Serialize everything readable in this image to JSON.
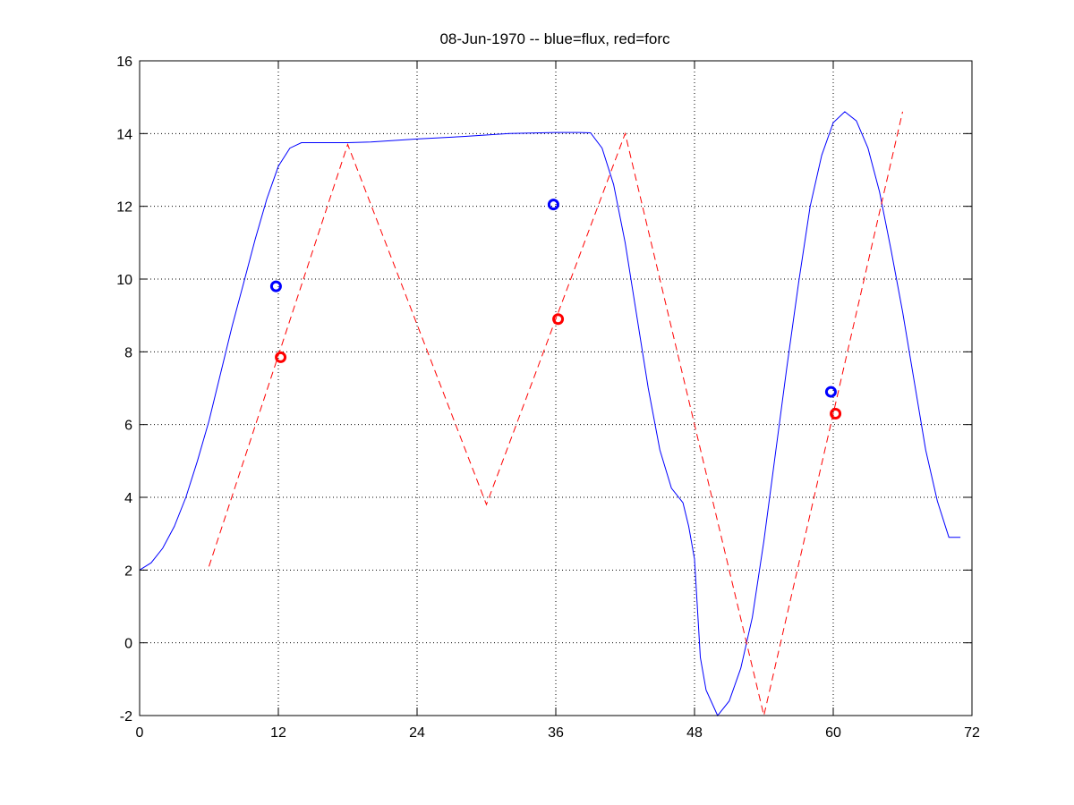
{
  "chart_data": {
    "type": "line",
    "title": "08-Jun-1970 -- blue=flux, red=forc",
    "xlabel": "",
    "ylabel": "",
    "xlim": [
      0,
      72
    ],
    "ylim": [
      -2,
      16
    ],
    "xticks": [
      0,
      12,
      24,
      36,
      48,
      60,
      72
    ],
    "yticks": [
      -2,
      0,
      2,
      4,
      6,
      8,
      10,
      12,
      14,
      16
    ],
    "grid": true,
    "colors": {
      "flux": "#0000ff",
      "forc": "#ff0000"
    },
    "series": [
      {
        "key": "flux",
        "style": "solid",
        "x": [
          0,
          1,
          2,
          3,
          4,
          5,
          6,
          7,
          8,
          9,
          10,
          11,
          12,
          13,
          14,
          15,
          16,
          18,
          20,
          24,
          28,
          32,
          36,
          38,
          39,
          40,
          41,
          42,
          43,
          44,
          45,
          46,
          47,
          47.5,
          48,
          48.5,
          49,
          50,
          51,
          52,
          53,
          54,
          55,
          56,
          57,
          58,
          59,
          60,
          61,
          62,
          63,
          64,
          65,
          66,
          67,
          68,
          69,
          70,
          71
        ],
        "y": [
          2.0,
          2.2,
          2.6,
          3.2,
          4.0,
          5.0,
          6.1,
          7.4,
          8.7,
          9.9,
          11.1,
          12.2,
          13.1,
          13.6,
          13.75,
          13.75,
          13.75,
          13.75,
          13.77,
          13.85,
          13.92,
          14.0,
          14.03,
          14.03,
          14.02,
          13.6,
          12.6,
          11.0,
          9.0,
          7.0,
          5.3,
          4.25,
          3.85,
          3.2,
          2.3,
          -0.4,
          -1.3,
          -2.0,
          -1.6,
          -0.7,
          0.7,
          2.8,
          5.2,
          7.6,
          9.9,
          12.0,
          13.4,
          14.3,
          14.6,
          14.35,
          13.6,
          12.4,
          10.8,
          9.1,
          7.2,
          5.3,
          3.9,
          2.9,
          2.9
        ]
      },
      {
        "key": "forc",
        "style": "dashed",
        "x": [
          6,
          18,
          30,
          42,
          54,
          66
        ],
        "y": [
          2.1,
          13.7,
          3.8,
          14.0,
          -2.0,
          14.6
        ]
      }
    ],
    "markers": [
      {
        "series": "flux",
        "x": 11.8,
        "y": 9.8
      },
      {
        "series": "flux",
        "x": 35.8,
        "y": 12.05
      },
      {
        "series": "flux",
        "x": 59.8,
        "y": 6.9
      },
      {
        "series": "forc",
        "x": 12.2,
        "y": 7.85
      },
      {
        "series": "forc",
        "x": 36.2,
        "y": 8.9
      },
      {
        "series": "forc",
        "x": 60.2,
        "y": 6.3
      }
    ]
  }
}
